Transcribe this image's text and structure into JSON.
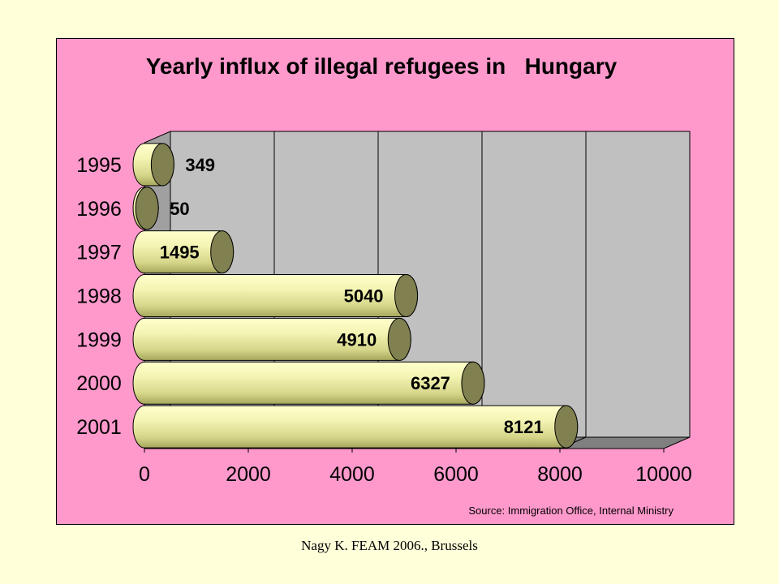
{
  "chart_data": {
    "type": "bar",
    "orientation": "horizontal",
    "title": "Yearly influx of illegal refugees in   Hungary",
    "categories": [
      "1995",
      "1996",
      "1997",
      "1998",
      "1999",
      "2000",
      "2001"
    ],
    "values": [
      349,
      50,
      1495,
      5040,
      4910,
      6327,
      8121
    ],
    "data_labels": [
      "349",
      "50",
      "1495",
      "5040",
      "4910",
      "6327",
      "8121"
    ],
    "xlim": [
      0,
      10000
    ],
    "x_ticks": [
      "0",
      "2000",
      "4000",
      "6000",
      "8000",
      "10000"
    ],
    "xlabel": "",
    "ylabel": "",
    "grid": true,
    "legend": "none",
    "style": "3d-cylinder",
    "colors": {
      "panel_background": "#FF99CC",
      "plot_wall": "#C0C0C0",
      "bar_light": "#FFFFCC",
      "bar_mid": "#E9E999",
      "bar_dark": "#B8B86A",
      "bar_cap": "#808050"
    }
  },
  "source_note": "Source: Immigration Office, Internal Ministry",
  "footer": "Nagy K. FEAM 2006., Brussels"
}
